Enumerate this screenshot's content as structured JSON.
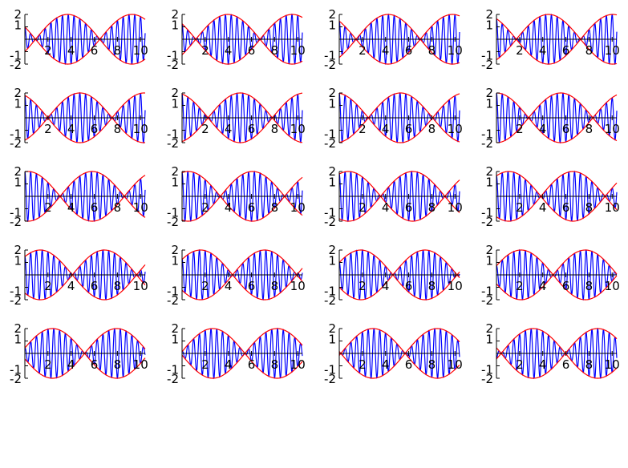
{
  "figure": {
    "rows": 5,
    "cols": 4
  },
  "colors": {
    "carrier": "#0000ff",
    "envelope": "#ff0000",
    "axis": "#000000"
  },
  "chart_data": {
    "type": "line",
    "description_of_grid": "5x4 small multiples, row-major order",
    "x_range": [
      0,
      10.4
    ],
    "y_range": [
      -2,
      2
    ],
    "x_ticks": [
      2,
      4,
      6,
      8,
      10
    ],
    "y_ticks": [
      2,
      1,
      -1,
      -2
    ],
    "x_tick_labels": [
      "2",
      "4",
      "6",
      "8",
      "10"
    ],
    "y_tick_labels": [
      "2",
      "1",
      "-1",
      "-2"
    ],
    "carrier_frequency": 2.0,
    "envelope_frequency": 0.09,
    "panels": [
      {
        "phase": 1.05
      },
      {
        "phase": 0.9
      },
      {
        "phase": 0.75
      },
      {
        "phase": 0.6
      },
      {
        "phase": 0.45
      },
      {
        "phase": 0.3
      },
      {
        "phase": 0.15
      },
      {
        "phase": 0.0
      },
      {
        "phase": -0.15
      },
      {
        "phase": -0.3
      },
      {
        "phase": -0.45
      },
      {
        "phase": -0.6
      },
      {
        "phase": -0.75
      },
      {
        "phase": -0.9
      },
      {
        "phase": -1.05
      },
      {
        "phase": -1.2
      },
      {
        "phase": -1.35
      },
      {
        "phase": -1.5
      },
      {
        "phase": -1.65
      },
      {
        "phase": -1.8
      }
    ]
  }
}
